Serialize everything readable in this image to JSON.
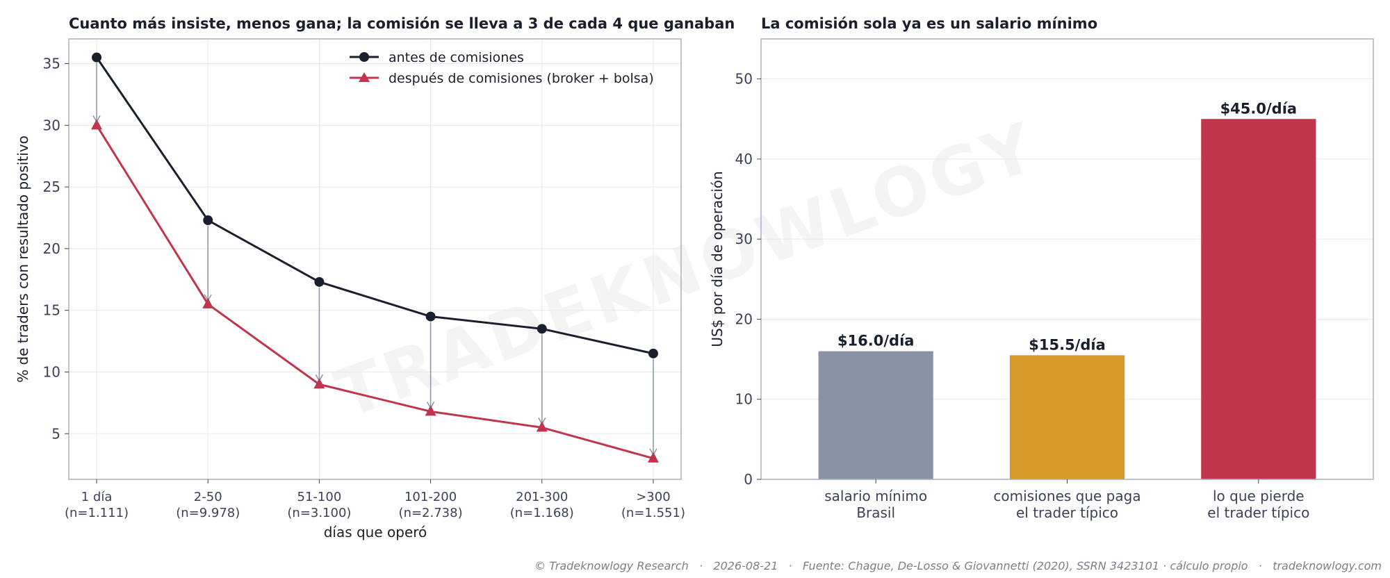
{
  "watermark": "TRADEKNOWLOGY",
  "footer": "© Tradeknowlogy Research   ·   2026-08-21   ·   Fuente: Chague, De-Losso & Giovannetti (2020), SSRN 3423101 · cálculo propio   ·   tradeknowlogy.com",
  "colors": {
    "before": "#1a1f2e",
    "after": "#c0354c",
    "arrow": "#8a93a6",
    "bar_gray": "#8a93a6",
    "bar_orange": "#d9982b",
    "bar_red": "#c0354c"
  },
  "chart_data": [
    {
      "type": "line",
      "title": "Cuanto más insiste, menos gana; la comisión se lleva a 3 de cada 4 que ganaban",
      "xlabel": "días que operó",
      "ylabel": "% de traders con resultado positivo",
      "categories": [
        "1 día",
        "2-50",
        "51-100",
        "101-200",
        "201-300",
        ">300"
      ],
      "category_sublabels": [
        "(n=1.111)",
        "(n=9.978)",
        "(n=3.100)",
        "(n=2.738)",
        "(n=1.168)",
        "(n=1.551)"
      ],
      "ylim": [
        1.3,
        37.0
      ],
      "yticks": [
        5,
        10,
        15,
        20,
        25,
        30,
        35
      ],
      "grid": true,
      "legend_position": "top-right",
      "series": [
        {
          "name": "antes de comisiones",
          "marker": "circle",
          "values": [
            35.5,
            22.3,
            17.3,
            14.5,
            13.5,
            11.5
          ]
        },
        {
          "name": "después de comisiones (broker + bolsa)",
          "marker": "triangle",
          "values": [
            30.0,
            15.5,
            9.0,
            6.8,
            5.5,
            3.0
          ]
        }
      ]
    },
    {
      "type": "bar",
      "title": "La comisión sola ya es un salario mínimo",
      "xlabel": "",
      "ylabel": "US$ por día de operación",
      "categories": [
        [
          "salario mínimo",
          "Brasil"
        ],
        [
          "comisiones que paga",
          "el trader típico"
        ],
        [
          "lo que pierde",
          "el trader típico"
        ]
      ],
      "values": [
        16.0,
        15.5,
        45.0
      ],
      "value_labels": [
        "$16.0/día",
        "$15.5/día",
        "$45.0/día"
      ],
      "ylim": [
        0,
        55
      ],
      "yticks": [
        0,
        10,
        20,
        30,
        40,
        50
      ],
      "grid": true
    }
  ]
}
